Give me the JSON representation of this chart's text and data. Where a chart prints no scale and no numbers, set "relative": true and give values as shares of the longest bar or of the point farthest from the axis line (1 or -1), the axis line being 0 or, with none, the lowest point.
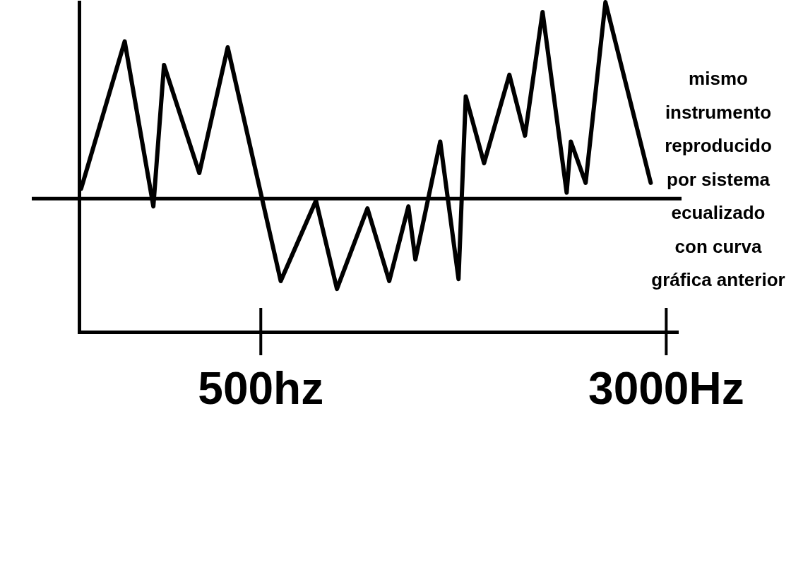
{
  "chart_data": {
    "type": "line",
    "relative": true,
    "log": "x",
    "color": "#000000",
    "x": [
      226,
      274,
      311,
      326,
      381,
      432,
      546,
      638,
      700,
      801,
      882,
      960,
      990,
      1105,
      1198,
      1237,
      1341,
      1500,
      1607,
      1737,
      1932,
      1968,
      2101,
      2293,
      2801
    ],
    "values": [
      0.05,
      0.8,
      -0.04,
      0.68,
      0.13,
      0.77,
      -0.42,
      -0.01,
      -0.46,
      -0.05,
      -0.42,
      -0.04,
      -0.31,
      0.29,
      -0.41,
      0.52,
      0.18,
      0.63,
      0.32,
      0.95,
      0.03,
      0.29,
      0.08,
      1,
      0.08
    ],
    "xlim": [
      224,
      3160
    ],
    "xticks": [
      {
        "value": 500,
        "label": "500hz"
      },
      {
        "value": 3000,
        "label": "3000Hz"
      }
    ],
    "tick_labels": "x",
    "annotations": [
      "mismo\ninstrumento\nreproducido\npor sistema\necualizado\ncon curva\ngráfica anterior"
    ]
  }
}
